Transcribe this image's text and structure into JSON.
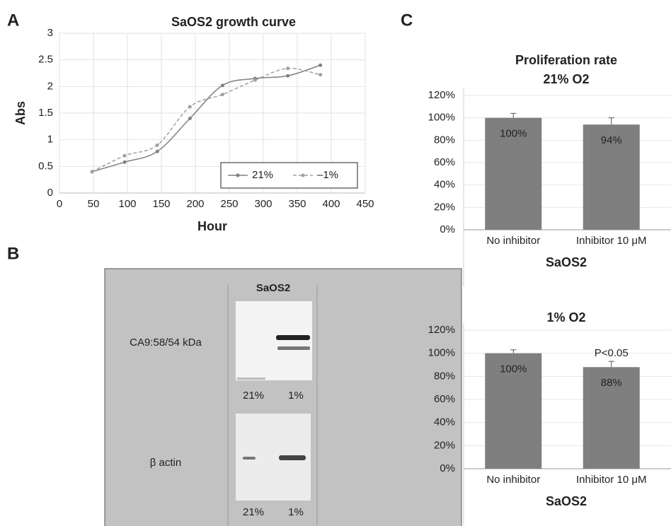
{
  "panel_labels": [
    "A",
    "B",
    "C"
  ],
  "blot": {
    "title": "SaOS2",
    "rows": [
      {
        "label": "CA9:58/54 kDa",
        "lanes": [
          "21%",
          "1%"
        ]
      },
      {
        "label": "β actin",
        "lanes": [
          "21%",
          "1%"
        ]
      }
    ]
  },
  "chart_data": [
    {
      "type": "line",
      "title": "SaOS2 growth curve",
      "x_label": "Hour",
      "y_label": "Abs",
      "x": [
        48,
        96,
        144,
        192,
        240,
        288,
        336,
        384
      ],
      "series": [
        {
          "name": "21%",
          "color": "#808080",
          "dashed": false,
          "values": [
            0.4,
            0.58,
            0.78,
            1.4,
            2.02,
            2.15,
            2.2,
            2.4
          ]
        },
        {
          "name": "–1%",
          "color": "#a0a0a0",
          "dashed": true,
          "values": [
            0.4,
            0.7,
            0.9,
            1.62,
            1.85,
            2.12,
            2.34,
            2.22
          ]
        }
      ],
      "xlim": [
        0,
        450
      ],
      "xticks": [
        0,
        50,
        100,
        150,
        200,
        250,
        300,
        350,
        400,
        450
      ],
      "ylim": [
        0,
        3
      ],
      "yticks": [
        0,
        0.5,
        1,
        1.5,
        2,
        2.5,
        3
      ],
      "grid": true,
      "legend": "lower right"
    },
    {
      "type": "bar",
      "title": [
        "Proliferation rate",
        "21% O2"
      ],
      "x_label": "SaOS2",
      "categories": [
        "No inhibitor",
        "Inhibitor 10 μM"
      ],
      "values": [
        100,
        94
      ],
      "value_labels": [
        "100%",
        "94%"
      ],
      "errors": [
        4,
        6
      ],
      "color": "#7f7f7f",
      "ylim": [
        0,
        120
      ],
      "yticks": [
        {
          "value": 0,
          "label": "0%"
        },
        {
          "value": 20,
          "label": "20%"
        },
        {
          "value": 40,
          "label": "40%"
        },
        {
          "value": 60,
          "label": "60%"
        },
        {
          "value": 80,
          "label": "80%"
        },
        {
          "value": 100,
          "label": "100%"
        },
        {
          "value": 120,
          "label": "120%"
        }
      ],
      "grid": true
    },
    {
      "type": "bar",
      "title": [
        "1% O2"
      ],
      "x_label": "SaOS2",
      "annotation": "P<0.05",
      "categories": [
        "No inhibitor",
        "Inhibitor 10 μM"
      ],
      "values": [
        100,
        88
      ],
      "value_labels": [
        "100%",
        "88%"
      ],
      "errors": [
        3,
        5
      ],
      "color": "#7f7f7f",
      "ylim": [
        0,
        120
      ],
      "yticks": [
        {
          "value": 0,
          "label": "0%"
        },
        {
          "value": 20,
          "label": "20%"
        },
        {
          "value": 40,
          "label": "40%"
        },
        {
          "value": 60,
          "label": "60%"
        },
        {
          "value": 80,
          "label": "80%"
        },
        {
          "value": 100,
          "label": "100%"
        },
        {
          "value": 120,
          "label": "120%"
        }
      ],
      "grid": true
    }
  ]
}
